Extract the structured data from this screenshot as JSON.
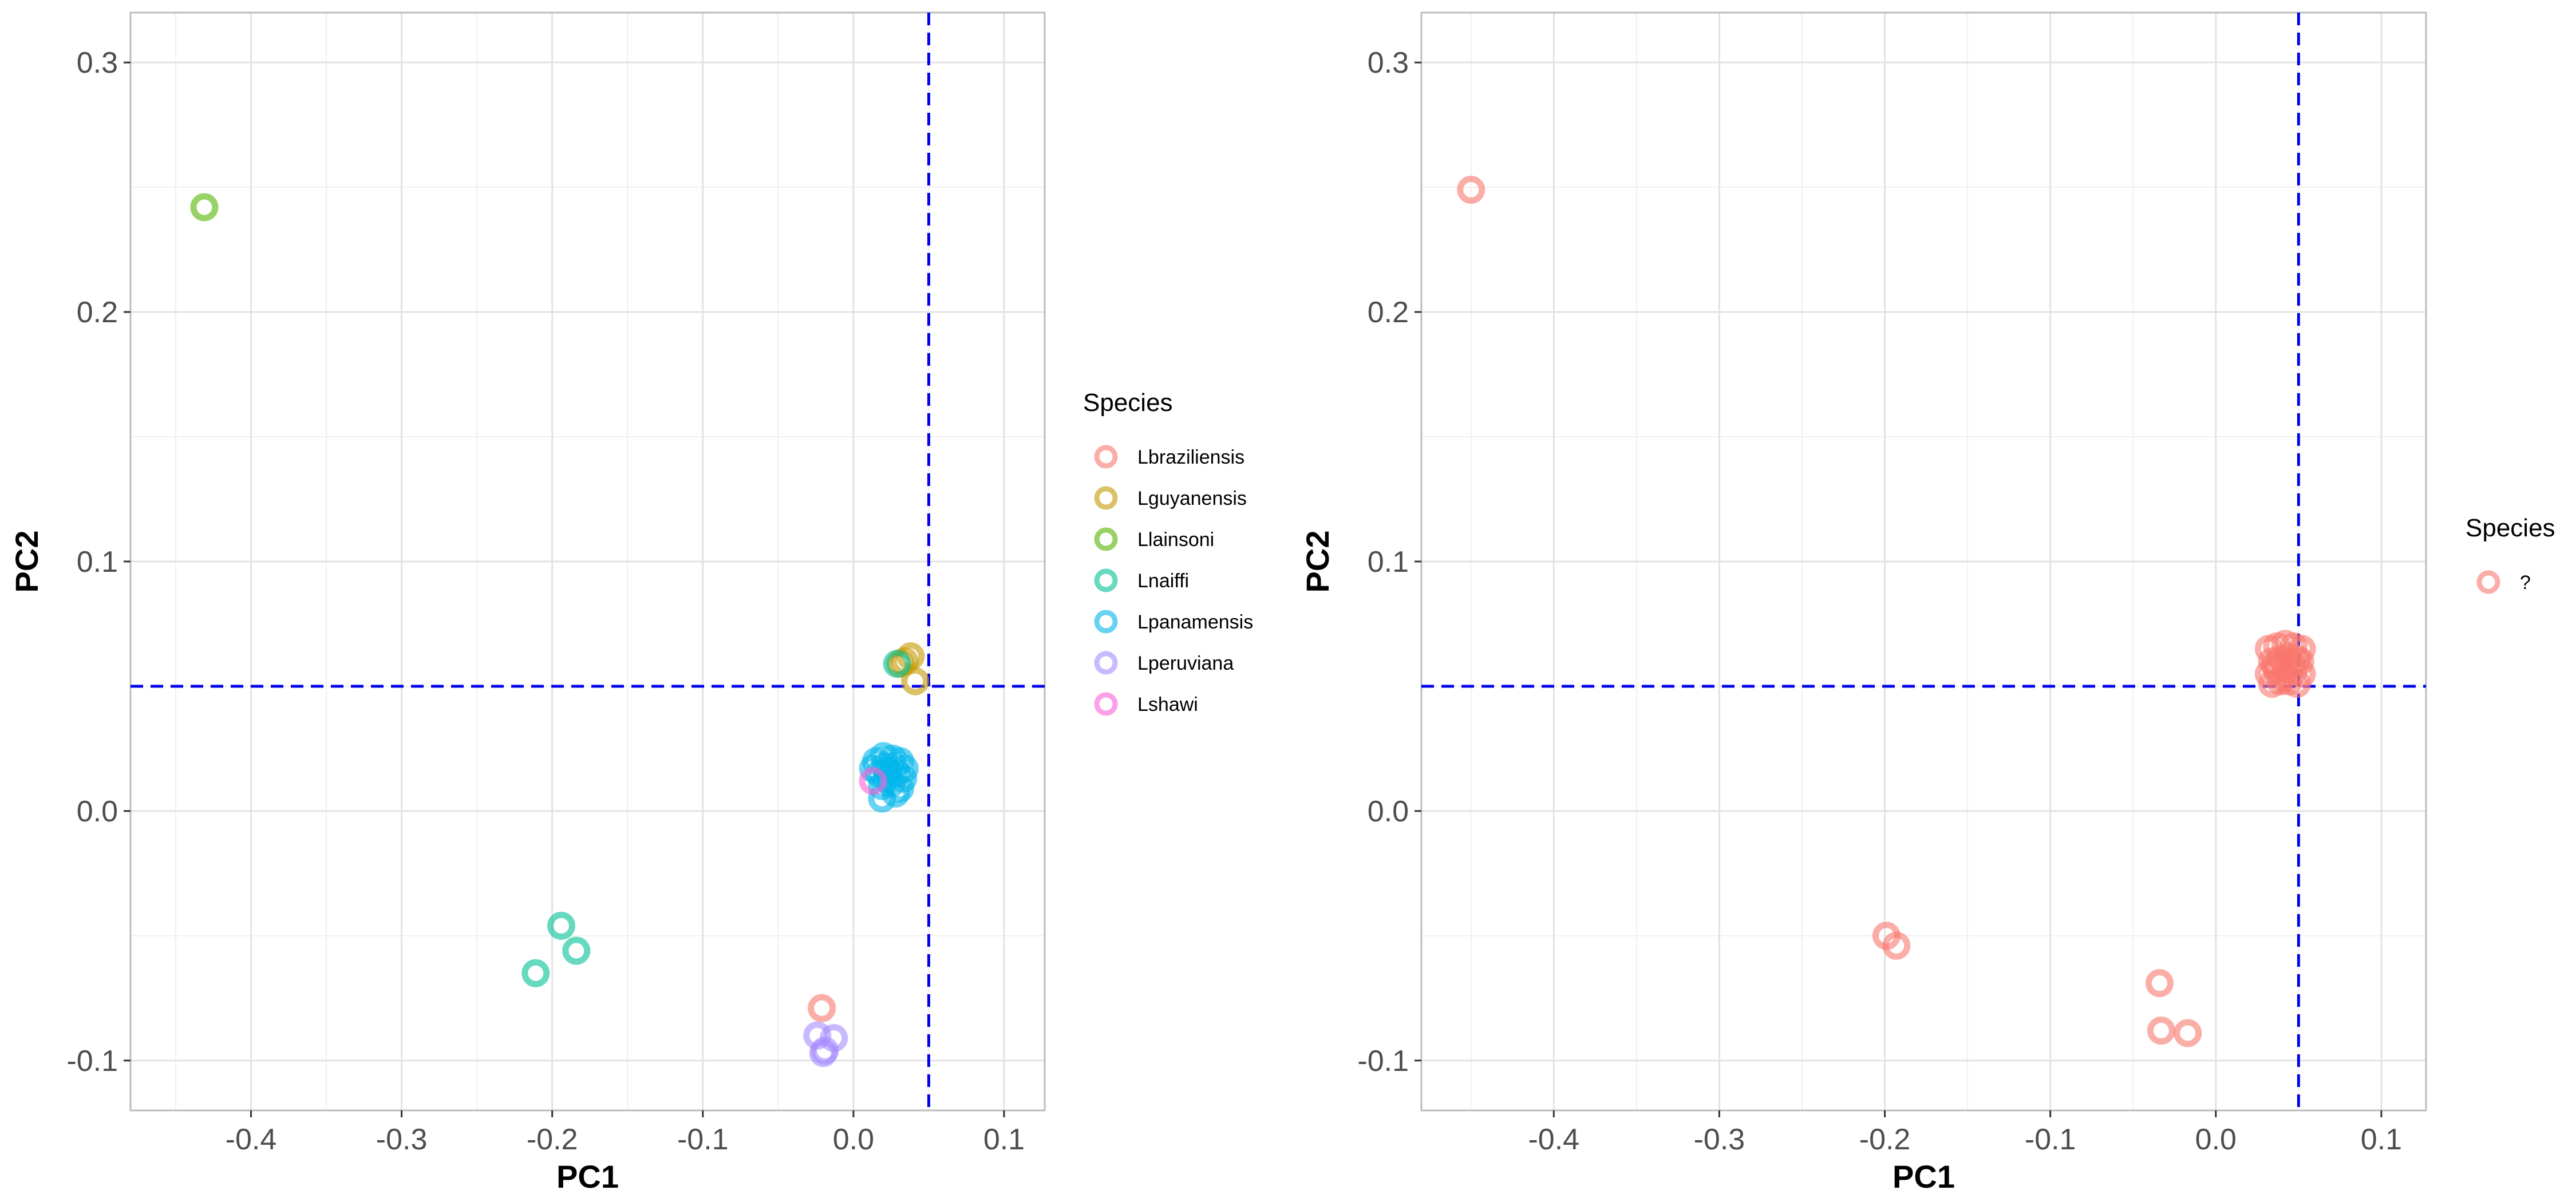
{
  "colors": {
    "Lbraziliensis": "#F8766D",
    "Lguyanensis": "#C49A00",
    "Llainsoni": "#53B400",
    "Lnaiffi": "#00C094",
    "Lpanamensis": "#00B6EB",
    "Lperuviana": "#A58AFF",
    "Lshawi": "#FB61D7",
    "?": "#F8766D",
    "refline": "#0000EE"
  },
  "chart_data": [
    {
      "type": "scatter",
      "title": "",
      "xlabel": "PC1",
      "ylabel": "PC2",
      "xlim": [
        -0.48,
        0.127
      ],
      "ylim": [
        -0.12,
        0.32
      ],
      "x_ticks": [
        -0.4,
        -0.3,
        -0.2,
        -0.1,
        0.0,
        0.1
      ],
      "x_tick_labels": [
        "-0.4",
        "-0.3",
        "-0.2",
        "-0.1",
        "0.0",
        "0.1"
      ],
      "y_ticks": [
        -0.1,
        0.0,
        0.1,
        0.2,
        0.3
      ],
      "y_tick_labels": [
        "-0.1",
        "0.0",
        "0.1",
        "0.2",
        "0.3"
      ],
      "reference_lines": {
        "x": 0.05,
        "y": 0.05
      },
      "legend": {
        "title": "Species",
        "entries": [
          "Lbraziliensis",
          "Lguyanensis",
          "Llainsoni",
          "Lnaiffi",
          "Lpanamensis",
          "Lperuviana",
          "Lshawi"
        ]
      },
      "series": [
        {
          "name": "Lbraziliensis",
          "points": [
            [
              -0.021,
              -0.079
            ]
          ]
        },
        {
          "name": "Lguyanensis",
          "points": [
            [
              0.034,
              0.06
            ],
            [
              0.038,
              0.062
            ],
            [
              0.041,
              0.052
            ],
            [
              0.031,
              0.059
            ]
          ]
        },
        {
          "name": "Llainsoni",
          "points": [
            [
              -0.431,
              0.242
            ]
          ]
        },
        {
          "name": "Lnaiffi",
          "points": [
            [
              -0.194,
              -0.046
            ],
            [
              -0.184,
              -0.056
            ],
            [
              -0.211,
              -0.065
            ],
            [
              0.029,
              0.059
            ]
          ]
        },
        {
          "name": "Lpanamensis",
          "points": [
            [
              0.015,
              0.02
            ],
            [
              0.02,
              0.022
            ],
            [
              0.026,
              0.021
            ],
            [
              0.031,
              0.02
            ],
            [
              0.017,
              0.015
            ],
            [
              0.023,
              0.016
            ],
            [
              0.029,
              0.015
            ],
            [
              0.033,
              0.013
            ],
            [
              0.019,
              0.01
            ],
            [
              0.025,
              0.011
            ],
            [
              0.031,
              0.009
            ],
            [
              0.028,
              0.007
            ],
            [
              0.021,
              0.018
            ],
            [
              0.027,
              0.018
            ],
            [
              0.019,
              0.005
            ],
            [
              0.013,
              0.017
            ],
            [
              0.034,
              0.017
            ],
            [
              0.022,
              0.013
            ]
          ]
        },
        {
          "name": "Lperuviana",
          "points": [
            [
              -0.024,
              -0.09
            ],
            [
              -0.013,
              -0.091
            ],
            [
              -0.019,
              -0.096
            ],
            [
              -0.02,
              -0.097
            ]
          ]
        },
        {
          "name": "Lshawi",
          "points": [
            [
              0.013,
              0.012
            ]
          ]
        }
      ]
    },
    {
      "type": "scatter",
      "title": "",
      "xlabel": "PC1",
      "ylabel": "PC2",
      "xlim": [
        -0.48,
        0.127
      ],
      "ylim": [
        -0.12,
        0.32
      ],
      "x_ticks": [
        -0.4,
        -0.3,
        -0.2,
        -0.1,
        0.0,
        0.1
      ],
      "x_tick_labels": [
        "-0.4",
        "-0.3",
        "-0.2",
        "-0.1",
        "0.0",
        "0.1"
      ],
      "y_ticks": [
        -0.1,
        0.0,
        0.1,
        0.2,
        0.3
      ],
      "y_tick_labels": [
        "-0.1",
        "0.0",
        "0.1",
        "0.2",
        "0.3"
      ],
      "reference_lines": {
        "x": 0.05,
        "y": 0.05
      },
      "legend": {
        "title": "Species",
        "entries": [
          "?"
        ]
      },
      "series": [
        {
          "name": "?",
          "points": [
            [
              -0.45,
              0.249
            ],
            [
              -0.199,
              -0.05
            ],
            [
              -0.193,
              -0.054
            ],
            [
              -0.034,
              -0.069
            ],
            [
              -0.033,
              -0.088
            ],
            [
              -0.017,
              -0.089
            ],
            [
              0.032,
              0.065
            ],
            [
              0.037,
              0.066
            ],
            [
              0.042,
              0.067
            ],
            [
              0.047,
              0.066
            ],
            [
              0.052,
              0.065
            ],
            [
              0.034,
              0.06
            ],
            [
              0.039,
              0.061
            ],
            [
              0.044,
              0.062
            ],
            [
              0.049,
              0.061
            ],
            [
              0.032,
              0.055
            ],
            [
              0.037,
              0.056
            ],
            [
              0.042,
              0.057
            ],
            [
              0.047,
              0.056
            ],
            [
              0.052,
              0.055
            ],
            [
              0.034,
              0.051
            ],
            [
              0.039,
              0.052
            ],
            [
              0.044,
              0.052
            ],
            [
              0.049,
              0.051
            ],
            [
              0.036,
              0.058
            ],
            [
              0.046,
              0.059
            ],
            [
              0.041,
              0.054
            ],
            [
              0.051,
              0.06
            ]
          ]
        }
      ]
    }
  ]
}
